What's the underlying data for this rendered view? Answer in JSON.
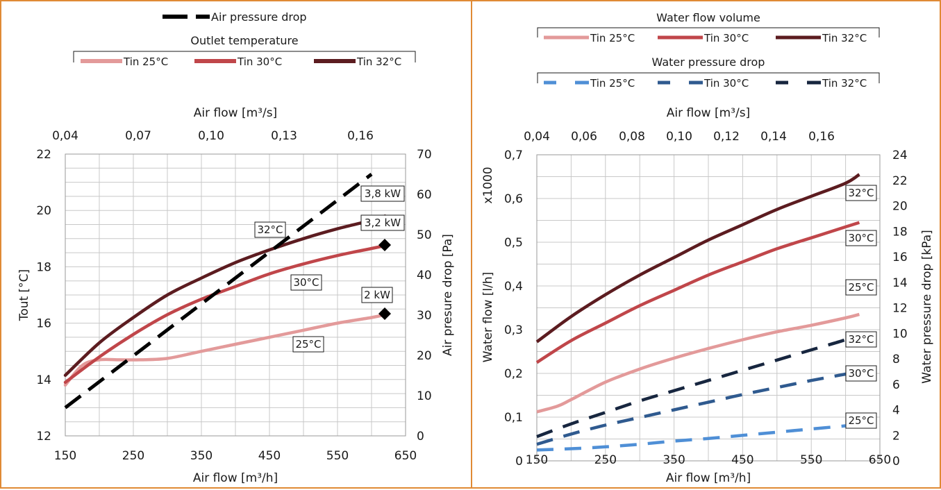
{
  "colors": {
    "frame": "#e08a34",
    "tin25": "#e39a9a",
    "tin30": "#c0464a",
    "tin32": "#5c1c20",
    "air_pressure": "#000000",
    "wp25": "#4f8fd6",
    "wp30": "#2f5a8f",
    "wp32": "#17263f",
    "grid": "#c8c8c8"
  },
  "chart_data": [
    {
      "type": "line",
      "legend": {
        "air_pressure_label": "Air pressure drop",
        "group_title": "Outlet temperature",
        "items": [
          "Tin 25°C",
          "Tin 30°C",
          "Tin 32°C"
        ]
      },
      "xlabel": "Air flow [m³/h]",
      "x2label": "Air flow [m³/s]",
      "ylabel": "Tout [°C]",
      "y2label": "Air presure drop [Pa]",
      "xlim": [
        150,
        650
      ],
      "ylim": [
        12,
        22
      ],
      "y2lim": [
        0,
        70
      ],
      "x_ticks": [
        "150",
        "250",
        "350",
        "450",
        "550",
        "650"
      ],
      "y_ticks": [
        "12",
        "14",
        "16",
        "18",
        "20",
        "22"
      ],
      "y2_ticks": [
        "0",
        "10",
        "20",
        "30",
        "40",
        "50",
        "60",
        "70"
      ],
      "x2_ticks": [
        "0,04",
        "0,07",
        "0,10",
        "0,13",
        "0,16"
      ],
      "grid": true,
      "series": [
        {
          "name": "Tin 25°C",
          "axis": "left",
          "x": [
            150,
            175,
            200,
            230,
            260,
            300,
            350,
            400,
            450,
            500,
            550,
            600,
            620
          ],
          "values": [
            13.8,
            14.5,
            14.7,
            14.7,
            14.7,
            14.75,
            15.0,
            15.25,
            15.5,
            15.75,
            16.0,
            16.2,
            16.3
          ]
        },
        {
          "name": "Tin 30°C",
          "axis": "left",
          "x": [
            150,
            200,
            250,
            300,
            350,
            400,
            450,
            500,
            550,
            600,
            620
          ],
          "values": [
            13.9,
            14.8,
            15.6,
            16.3,
            16.85,
            17.3,
            17.75,
            18.1,
            18.4,
            18.65,
            18.75
          ]
        },
        {
          "name": "Tin 32°C",
          "axis": "left",
          "x": [
            150,
            200,
            250,
            300,
            350,
            400,
            450,
            500,
            550,
            600,
            620
          ],
          "values": [
            14.15,
            15.3,
            16.2,
            17.0,
            17.6,
            18.15,
            18.6,
            19.0,
            19.35,
            19.65,
            19.8
          ]
        },
        {
          "name": "Air pressure drop",
          "axis": "right",
          "x": [
            150,
            600
          ],
          "values": [
            7,
            65
          ]
        }
      ],
      "annotations": [
        "3,8 kW",
        "3,2 kW",
        "2 kW",
        "32°C",
        "30°C",
        "25°C"
      ]
    },
    {
      "type": "line",
      "legend": {
        "group1_title": "Water flow volume",
        "group1_items": [
          "Tin 25°C",
          "Tin 30°C",
          "Tin 32°C"
        ],
        "group2_title": "Water pressure drop",
        "group2_items": [
          "Tin 25°C",
          "Tin 30°C",
          "Tin 32°C"
        ]
      },
      "xlabel": "Air flow [m³/h]",
      "x2label": "Air flow [m³/s]",
      "ylabel": "Water flow [l/h]",
      "y_multiplier": "x1000",
      "y2label": "Water pressure drop [kPa]",
      "xlim": [
        150,
        650
      ],
      "ylim": [
        0,
        0.7
      ],
      "y2lim": [
        0,
        24
      ],
      "x_ticks": [
        "150",
        "250",
        "350",
        "450",
        "550",
        "650"
      ],
      "y_ticks": [
        "0",
        "0,1",
        "0,2",
        "0,3",
        "0,4",
        "0,5",
        "0,6",
        "0,7"
      ],
      "y2_ticks": [
        "0",
        "2",
        "4",
        "6",
        "8",
        "10",
        "12",
        "14",
        "16",
        "18",
        "20",
        "22",
        "24"
      ],
      "x2_ticks": [
        "0,04",
        "0,06",
        "0,08",
        "0,10",
        "0,12",
        "0,14",
        "0,16"
      ],
      "grid": true,
      "series": [
        {
          "name": "Tin 25°C",
          "group": "Water flow volume",
          "axis": "left",
          "x": [
            150,
            180,
            200,
            250,
            300,
            350,
            400,
            450,
            500,
            550,
            600,
            620
          ],
          "values": [
            0.112,
            0.125,
            0.14,
            0.18,
            0.21,
            0.235,
            0.257,
            0.277,
            0.295,
            0.31,
            0.327,
            0.335
          ]
        },
        {
          "name": "Tin 30°C",
          "group": "Water flow volume",
          "axis": "left",
          "x": [
            150,
            200,
            250,
            300,
            350,
            400,
            450,
            500,
            550,
            600,
            620
          ],
          "values": [
            0.225,
            0.275,
            0.315,
            0.355,
            0.39,
            0.425,
            0.455,
            0.485,
            0.51,
            0.535,
            0.545
          ]
        },
        {
          "name": "Tin 32°C",
          "group": "Water flow volume",
          "axis": "left",
          "x": [
            150,
            200,
            250,
            300,
            350,
            400,
            450,
            500,
            550,
            600,
            620
          ],
          "values": [
            0.272,
            0.33,
            0.38,
            0.425,
            0.465,
            0.505,
            0.54,
            0.575,
            0.605,
            0.635,
            0.655
          ]
        },
        {
          "name": "Tin 25°C",
          "group": "Water pressure drop",
          "axis": "right",
          "x": [
            150,
            200,
            250,
            300,
            350,
            400,
            450,
            500,
            550,
            600,
            620
          ],
          "values": [
            0.85,
            0.95,
            1.1,
            1.3,
            1.55,
            1.75,
            2.0,
            2.25,
            2.5,
            2.75,
            2.9
          ]
        },
        {
          "name": "Tin 30°C",
          "group": "Water pressure drop",
          "axis": "right",
          "x": [
            150,
            200,
            250,
            300,
            350,
            400,
            450,
            500,
            550,
            600,
            620
          ],
          "values": [
            1.3,
            2.1,
            2.8,
            3.4,
            4.0,
            4.6,
            5.2,
            5.75,
            6.3,
            6.8,
            7.0
          ]
        },
        {
          "name": "Tin 32°C",
          "group": "Water pressure drop",
          "axis": "right",
          "x": [
            150,
            200,
            250,
            300,
            350,
            400,
            450,
            500,
            550,
            600,
            620
          ],
          "values": [
            1.9,
            2.9,
            3.8,
            4.7,
            5.5,
            6.3,
            7.1,
            7.9,
            8.7,
            9.5,
            10.0
          ]
        }
      ],
      "annotations": [
        "32°C",
        "30°C",
        "25°C",
        "32°C",
        "30°C",
        "25°C"
      ]
    }
  ]
}
